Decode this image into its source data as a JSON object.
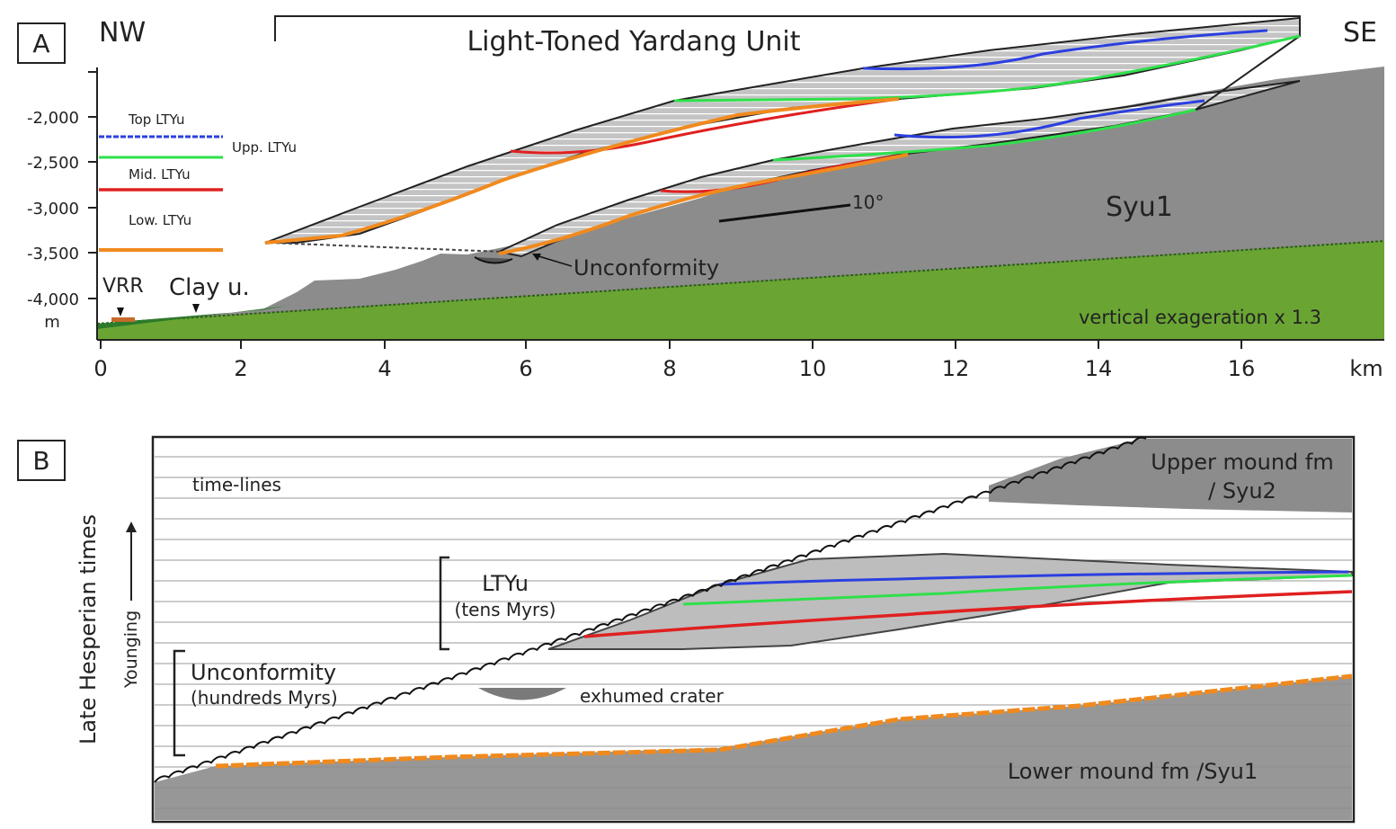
{
  "panel_a": {
    "panel_letter": "A",
    "direction_left": "NW",
    "direction_right": "SE",
    "unit_title": "Light-Toned Yardang Unit",
    "legend": {
      "top": "Top LTYu",
      "upper": "Upp. LTYu",
      "mid": "Mid. LTYu",
      "low": "Low. LTYu"
    },
    "y_ticks": [
      "-2,000",
      "-2,500",
      "-3,000",
      "-3,500",
      "-4,000"
    ],
    "y_unit": "m",
    "x_ticks": [
      "0",
      "2",
      "4",
      "6",
      "8",
      "10",
      "12",
      "14",
      "16"
    ],
    "x_unit": "km",
    "labels": {
      "vrr": "VRR",
      "clay": "Clay u.",
      "unconformity": "Unconformity",
      "dip": "10°",
      "syu1": "Syu1",
      "exaggeration": "vertical exageration x 1.3"
    }
  },
  "panel_b": {
    "panel_letter": "B",
    "axis_label": "Late Hesperian times",
    "younging": "Younging",
    "time_lines": "time-lines",
    "upper_mound_line1": "Upper mound fm",
    "upper_mound_line2": "/ Syu2",
    "ltyu": "LTYu",
    "ltyu_duration": "(tens Myrs)",
    "unconformity": "Unconformity",
    "unconformity_duration": "(hundreds Myrs)",
    "exhumed_crater": "exhumed crater",
    "lower_mound": "Lower mound fm /Syu1"
  },
  "colors": {
    "top_ltyu": "#2b3fe0",
    "upper_ltyu": "#2ee04a",
    "mid_ltyu": "#e02020",
    "low_ltyu": "#f08a1e",
    "basement_green": "#6aa534",
    "mound_gray": "#8c8c8c",
    "layered_gray": "#c8c8c8"
  }
}
